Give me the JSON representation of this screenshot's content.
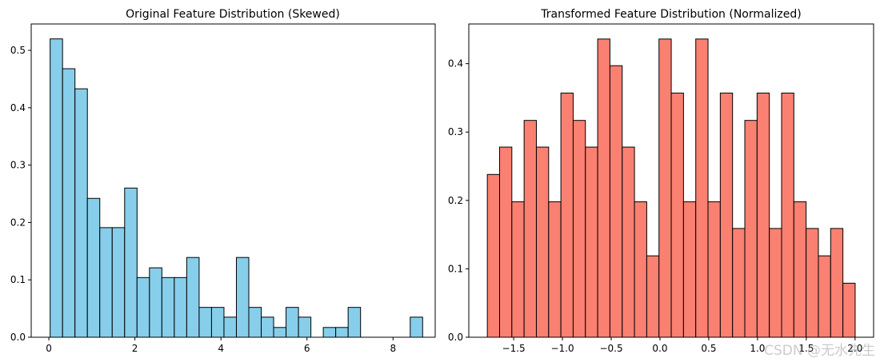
{
  "watermark": "CSDN @无水先生",
  "chart_data": [
    {
      "type": "bar",
      "title": "Original Feature Distribution (Skewed)",
      "xlabel": "",
      "ylabel": "",
      "color": "#87CEEB",
      "edgecolor": "#000000",
      "bin_start": 0.03,
      "bin_width": 0.2886,
      "values": [
        0.52,
        0.468,
        0.433,
        0.242,
        0.191,
        0.191,
        0.26,
        0.104,
        0.121,
        0.104,
        0.104,
        0.139,
        0.052,
        0.052,
        0.035,
        0.139,
        0.052,
        0.035,
        0.017,
        0.052,
        0.035,
        0,
        0.017,
        0.017,
        0.052,
        0,
        0,
        0,
        0,
        0.035
      ],
      "xlim": [
        -0.41,
        8.98
      ],
      "ylim": [
        0,
        0.546
      ],
      "xticks": [
        0,
        2,
        4,
        6,
        8
      ],
      "xtick_labels": [
        "0",
        "2",
        "4",
        "6",
        "8"
      ],
      "yticks": [
        0,
        0.1,
        0.2,
        0.3,
        0.4,
        0.5
      ],
      "ytick_labels": [
        "0.0",
        "0.1",
        "0.2",
        "0.3",
        "0.4",
        "0.5"
      ],
      "grid": false
    },
    {
      "type": "bar",
      "title": "Transformed Feature Distribution (Normalized)",
      "xlabel": "",
      "ylabel": "",
      "color": "#FA8072",
      "edgecolor": "#000000",
      "bin_start": -1.77,
      "bin_width": 0.1257,
      "values": [
        0.238,
        0.278,
        0.198,
        0.317,
        0.278,
        0.198,
        0.357,
        0.317,
        0.278,
        0.436,
        0.397,
        0.278,
        0.198,
        0.119,
        0.436,
        0.357,
        0.198,
        0.436,
        0.198,
        0.357,
        0.159,
        0.317,
        0.357,
        0.159,
        0.357,
        0.198,
        0.159,
        0.119,
        0.159,
        0.079
      ],
      "xlim": [
        -1.96,
        2.19
      ],
      "ylim": [
        0,
        0.458
      ],
      "xticks": [
        -1.5,
        -1.0,
        -0.5,
        0.0,
        0.5,
        1.0,
        1.5,
        2.0
      ],
      "xtick_labels": [
        "−1.5",
        "−1.0",
        "−0.5",
        "0.0",
        "0.5",
        "1.0",
        "1.5",
        "2.0"
      ],
      "yticks": [
        0,
        0.1,
        0.2,
        0.3,
        0.4
      ],
      "ytick_labels": [
        "0.0",
        "0.1",
        "0.2",
        "0.3",
        "0.4"
      ],
      "grid": false
    }
  ]
}
